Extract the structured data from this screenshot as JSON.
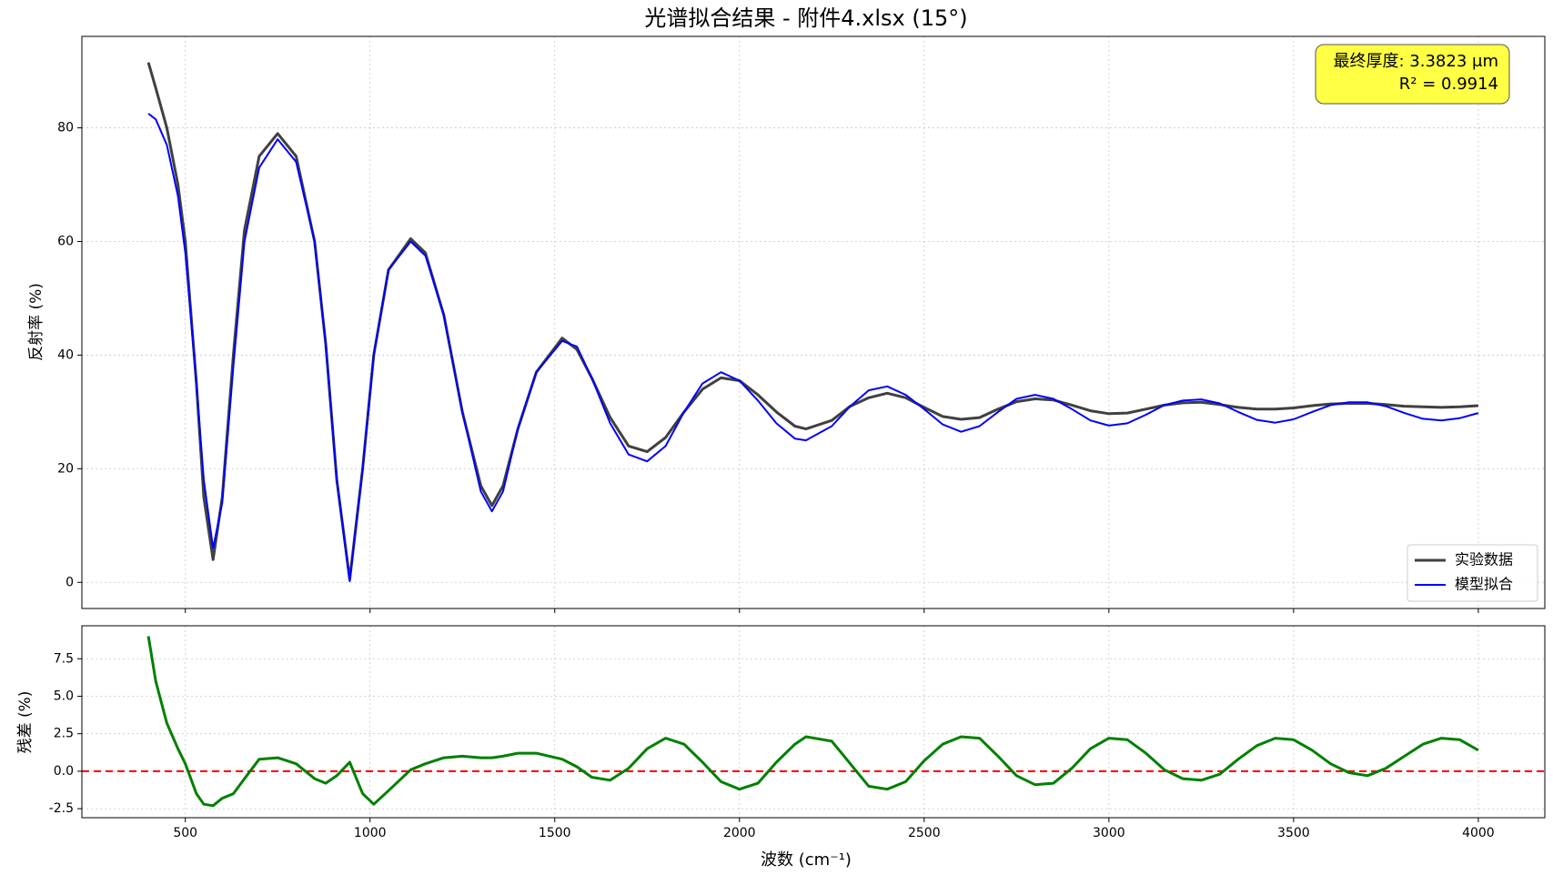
{
  "chart_data": [
    {
      "type": "line",
      "title": "光谱拟合结果 - 附件4.xlsx (15°)",
      "ylabel": "反射率 (%)",
      "x": [
        400,
        420,
        450,
        480,
        500,
        530,
        550,
        575,
        600,
        630,
        660,
        700,
        750,
        800,
        850,
        880,
        910,
        945,
        980,
        1010,
        1050,
        1110,
        1150,
        1200,
        1250,
        1300,
        1330,
        1360,
        1400,
        1450,
        1520,
        1560,
        1600,
        1650,
        1700,
        1750,
        1800,
        1850,
        1900,
        1950,
        2000,
        2050,
        2100,
        2150,
        2180,
        2250,
        2300,
        2350,
        2400,
        2450,
        2500,
        2550,
        2600,
        2650,
        2700,
        2750,
        2800,
        2850,
        2900,
        2950,
        3000,
        3050,
        3100,
        3150,
        3200,
        3250,
        3300,
        3350,
        3400,
        3450,
        3500,
        3550,
        3600,
        3650,
        3700,
        3750,
        3800,
        3850,
        3900,
        3950,
        4000
      ],
      "series": [
        {
          "name": "实验数据",
          "color": "#404040",
          "values": [
            91.5,
            87,
            80,
            70,
            60,
            35,
            15,
            4,
            15,
            40,
            62,
            75,
            79,
            75,
            60,
            42,
            18,
            0.5,
            20,
            40,
            55,
            60.5,
            58,
            47,
            30,
            17,
            13.5,
            17,
            27,
            37,
            43,
            41,
            36,
            29,
            24,
            23,
            25.5,
            30,
            34,
            36,
            35.5,
            33,
            30,
            27.5,
            27,
            28.5,
            31,
            32.5,
            33.3,
            32.5,
            30.8,
            29.2,
            28.7,
            29,
            30.5,
            31.8,
            32.3,
            32.1,
            31.2,
            30.2,
            29.7,
            29.8,
            30.5,
            31.2,
            31.6,
            31.7,
            31.3,
            30.8,
            30.5,
            30.5,
            30.7,
            31.1,
            31.4,
            31.5,
            31.5,
            31.3,
            31,
            30.9,
            30.8,
            30.9,
            31.1
          ]
        },
        {
          "name": "模型拟合",
          "color": "#0000ff",
          "values": [
            82.5,
            81.5,
            77,
            68,
            58,
            35,
            18,
            6,
            14,
            38,
            60,
            73,
            78,
            74,
            60,
            42,
            18,
            0.2,
            20,
            40,
            55,
            60,
            57.5,
            47,
            30,
            16,
            12.5,
            16,
            27,
            37,
            42.5,
            41.5,
            36,
            28,
            22.5,
            21.3,
            24,
            30,
            35,
            37,
            35.5,
            32,
            28,
            25.3,
            25,
            27.5,
            31,
            33.8,
            34.5,
            33,
            30.5,
            27.8,
            26.5,
            27.5,
            30,
            32.3,
            33,
            32.3,
            30.5,
            28.5,
            27.6,
            28,
            29.5,
            31.2,
            32,
            32.2,
            31.5,
            30,
            28.6,
            28.1,
            28.7,
            30,
            31.2,
            31.7,
            31.7,
            31,
            29.8,
            28.8,
            28.5,
            28.9,
            29.8
          ]
        }
      ],
      "xlim": [
        220,
        4180
      ],
      "xticks": [
        500,
        1000,
        1500,
        2000,
        2500,
        3000,
        3500,
        4000
      ],
      "ylim": [
        -4.6,
        96.1
      ],
      "yticks": [
        0,
        20,
        40,
        60,
        80
      ],
      "grid": true,
      "legend": "lower right",
      "annotation": {
        "lines": [
          "最终厚度: 3.3823 μm",
          "R² = 0.9914"
        ],
        "color": "#ffff44"
      }
    },
    {
      "type": "line",
      "ylabel": "残差 (%)",
      "xlabel": "波数 (cm⁻¹)",
      "x": [
        400,
        420,
        450,
        480,
        500,
        530,
        550,
        575,
        600,
        630,
        660,
        700,
        750,
        800,
        850,
        880,
        910,
        945,
        980,
        1010,
        1050,
        1110,
        1150,
        1200,
        1250,
        1300,
        1330,
        1360,
        1400,
        1450,
        1520,
        1560,
        1600,
        1650,
        1700,
        1750,
        1800,
        1850,
        1900,
        1950,
        2000,
        2050,
        2100,
        2150,
        2180,
        2250,
        2300,
        2350,
        2400,
        2450,
        2500,
        2550,
        2600,
        2650,
        2700,
        2750,
        2800,
        2850,
        2900,
        2950,
        3000,
        3050,
        3100,
        3150,
        3200,
        3250,
        3300,
        3350,
        3400,
        3450,
        3500,
        3550,
        3600,
        3650,
        3700,
        3750,
        3800,
        3850,
        3900,
        3950,
        4000
      ],
      "series": [
        {
          "color": "#008000",
          "values": [
            9,
            6,
            3.2,
            1.5,
            0.5,
            -1.5,
            -2.2,
            -2.3,
            -1.8,
            -1.5,
            -0.5,
            0.8,
            0.9,
            0.5,
            -0.5,
            -0.8,
            -0.3,
            0.6,
            -1.5,
            -2.2,
            -1.3,
            0.1,
            0.5,
            0.9,
            1.0,
            0.9,
            0.9,
            1.0,
            1.2,
            1.2,
            0.8,
            0.3,
            -0.4,
            -0.6,
            0.2,
            1.5,
            2.2,
            1.8,
            0.6,
            -0.7,
            -1.2,
            -0.8,
            0.6,
            1.8,
            2.3,
            2.0,
            0.5,
            -1.0,
            -1.2,
            -0.7,
            0.7,
            1.8,
            2.3,
            2.2,
            1.0,
            -0.3,
            -0.9,
            -0.8,
            0.2,
            1.5,
            2.2,
            2.1,
            1.2,
            0.1,
            -0.5,
            -0.6,
            -0.2,
            0.8,
            1.7,
            2.2,
            2.1,
            1.4,
            0.5,
            -0.1,
            -0.3,
            0.2,
            1.0,
            1.8,
            2.2,
            2.1,
            1.4
          ]
        }
      ],
      "hline": {
        "value": 0,
        "color": "#ff0000"
      },
      "xlim": [
        220,
        4180
      ],
      "xticks": [
        500,
        1000,
        1500,
        2000,
        2500,
        3000,
        3500,
        4000
      ],
      "ylim": [
        -3.1,
        9.7
      ],
      "yticks": [
        7.5,
        {
          "value": 5,
          "label": "5.0"
        },
        {
          "value": 2.5,
          "label": "2.5"
        },
        {
          "value": 0,
          "label": "0.0"
        },
        -2.5
      ],
      "grid": true
    }
  ]
}
